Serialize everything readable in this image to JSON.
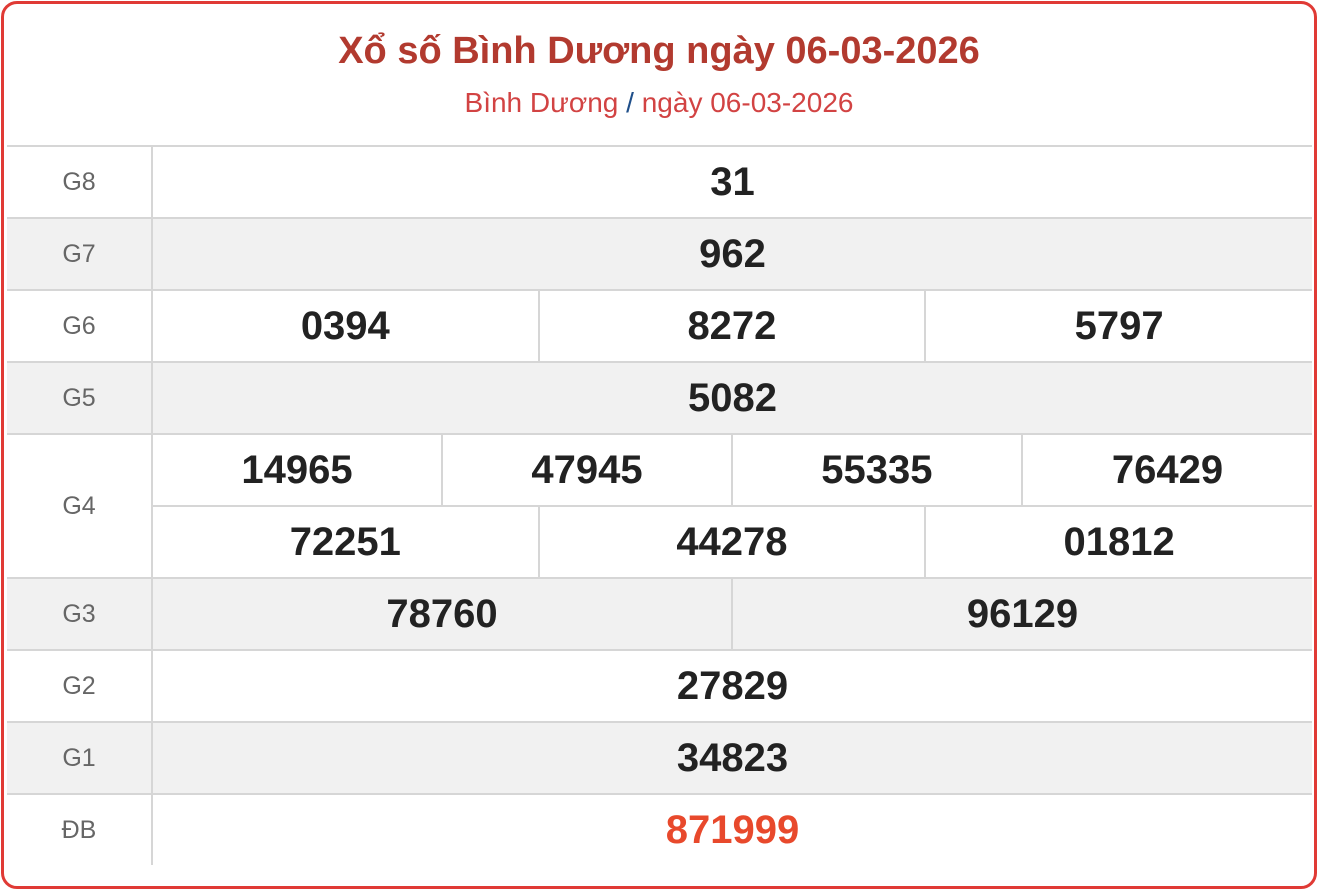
{
  "header": {
    "title": "Xổ số Bình Dương ngày 06-03-2026",
    "breadcrumb_province": "Bình Dương",
    "breadcrumb_separator": "/",
    "breadcrumb_date": "ngày 06-03-2026"
  },
  "colors": {
    "border": "#e03a35",
    "title": "#b23a2f",
    "special": "#e8492c"
  },
  "prizes": {
    "g8": {
      "label": "G8",
      "numbers": [
        "31"
      ]
    },
    "g7": {
      "label": "G7",
      "numbers": [
        "962"
      ]
    },
    "g6": {
      "label": "G6",
      "numbers": [
        "0394",
        "8272",
        "5797"
      ]
    },
    "g5": {
      "label": "G5",
      "numbers": [
        "5082"
      ]
    },
    "g4": {
      "label": "G4",
      "numbers": [
        "14965",
        "47945",
        "55335",
        "76429",
        "72251",
        "44278",
        "01812"
      ]
    },
    "g3": {
      "label": "G3",
      "numbers": [
        "78760",
        "96129"
      ]
    },
    "g2": {
      "label": "G2",
      "numbers": [
        "27829"
      ]
    },
    "g1": {
      "label": "G1",
      "numbers": [
        "34823"
      ]
    },
    "db": {
      "label": "ĐB",
      "numbers": [
        "871999"
      ]
    }
  }
}
